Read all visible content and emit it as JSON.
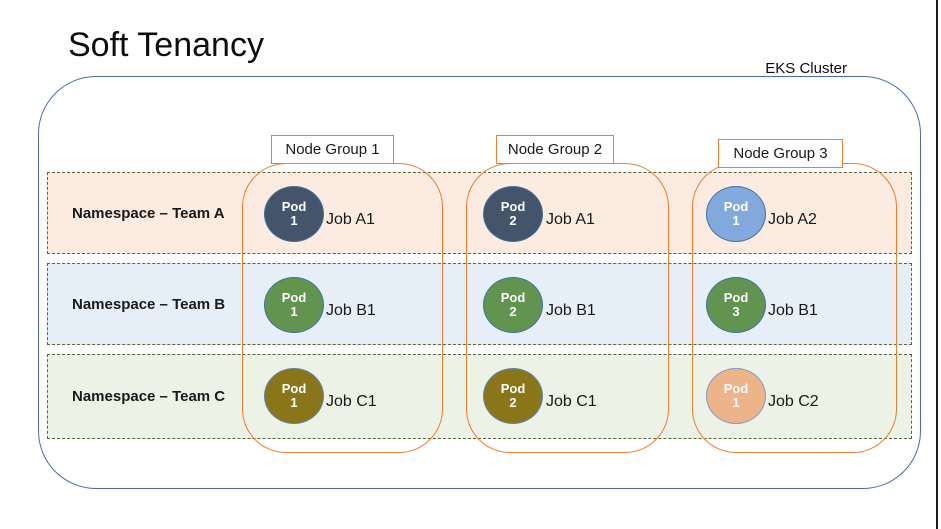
{
  "title": "Soft Tenancy",
  "cluster": {
    "label": "EKS Cluster",
    "border_color": "#4a6ca8"
  },
  "accent": {
    "node_group_orange": "#ED7D31",
    "namespace_border_green": "#55683B"
  },
  "node_groups": [
    {
      "label": "Node Group 1"
    },
    {
      "label": "Node Group 2"
    },
    {
      "label": "Node Group 3"
    }
  ],
  "namespaces": [
    {
      "label": "Namespace – Team A",
      "row_color": "#FBEBE0",
      "pods": [
        {
          "name": "Pod",
          "number": "1",
          "job": "Job A1",
          "fill": "#44546A",
          "border": "#41719C",
          "text_color": "#FFFFFF"
        },
        {
          "name": "Pod",
          "number": "2",
          "job": "Job A1",
          "fill": "#44546A",
          "border": "#41719C",
          "text_color": "#FFFFFF"
        },
        {
          "name": "Pod",
          "number": "1",
          "job": "Job A2",
          "fill": "#82A9DB",
          "border": "#41719C",
          "text_color": "#FFFFFF"
        }
      ]
    },
    {
      "label": "Namespace – Team B",
      "row_color": "#E6EEF8",
      "pods": [
        {
          "name": "Pod",
          "number": "1",
          "job": "Job B1",
          "fill": "#61954F",
          "border": "#41719C",
          "text_color": "#FFFFFF"
        },
        {
          "name": "Pod",
          "number": "2",
          "job": "Job B1",
          "fill": "#61954F",
          "border": "#41719C",
          "text_color": "#FFFFFF"
        },
        {
          "name": "Pod",
          "number": "3",
          "job": "Job B1",
          "fill": "#61954F",
          "border": "#41719C",
          "text_color": "#FFFFFF"
        }
      ]
    },
    {
      "label": "Namespace – Team C",
      "row_color": "#ECF2E6",
      "pods": [
        {
          "name": "Pod",
          "number": "1",
          "job": "Job C1",
          "fill": "#8A7519",
          "border": "#5B84B1",
          "text_color": "#FFFFFF"
        },
        {
          "name": "Pod",
          "number": "2",
          "job": "Job C1",
          "fill": "#8A7519",
          "border": "#5B84B1",
          "text_color": "#FFFFFF"
        },
        {
          "name": "Pod",
          "number": "1",
          "job": "Job C2",
          "fill": "#EDB389",
          "border": "#8096C8",
          "text_color": "#FFFFFF"
        }
      ]
    }
  ]
}
